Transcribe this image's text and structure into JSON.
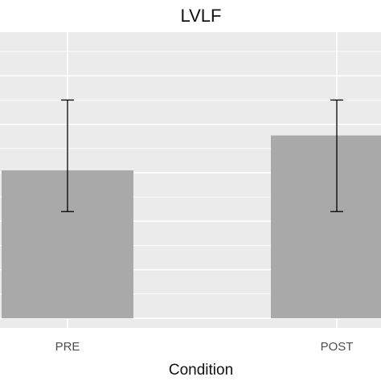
{
  "chart_data": {
    "type": "bar",
    "title": "LVLF",
    "xlabel": "Condition",
    "ylabel": "",
    "categories": [
      "PRE",
      "POST"
    ],
    "values": [
      3.05,
      3.77
    ],
    "error_bars": [
      {
        "lower": 2.2,
        "upper": 4.5
      },
      {
        "lower": 2.2,
        "upper": 4.5
      }
    ],
    "ylim": [
      -0.2,
      5.9
    ],
    "grid": true,
    "legend": "none",
    "colors": {
      "panel": "#ebebeb",
      "grid": "#ffffff",
      "bar": "#a9a9a9",
      "errorbar": "#000000"
    }
  }
}
